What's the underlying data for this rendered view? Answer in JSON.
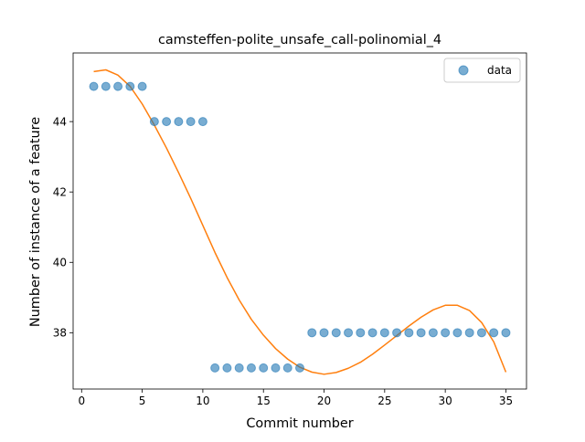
{
  "chart_data": {
    "type": "scatter",
    "title": "camsteffen-polite_unsafe_call-polinomial_4",
    "xlabel": "Commit number",
    "ylabel": "Number of instance of a feature",
    "xlim": [
      -0.7,
      36.7
    ],
    "ylim": [
      36.4,
      45.95
    ],
    "xticks": [
      0,
      5,
      10,
      15,
      20,
      25,
      30,
      35
    ],
    "yticks": [
      38,
      40,
      42,
      44
    ],
    "grid": false,
    "legend": {
      "placement": "top-right",
      "entries": [
        "data"
      ]
    },
    "series": [
      {
        "name": "data",
        "kind": "scatter",
        "color": "#1f77b4",
        "x": [
          1,
          2,
          3,
          4,
          5,
          6,
          7,
          8,
          9,
          10,
          11,
          12,
          13,
          14,
          15,
          16,
          17,
          18,
          19,
          20,
          21,
          22,
          23,
          24,
          25,
          26,
          27,
          28,
          29,
          30,
          31,
          32,
          33,
          34,
          35
        ],
        "y": [
          45,
          45,
          45,
          45,
          45,
          44,
          44,
          44,
          44,
          44,
          37,
          37,
          37,
          37,
          37,
          37,
          37,
          37,
          38,
          38,
          38,
          38,
          38,
          38,
          38,
          38,
          38,
          38,
          38,
          38,
          38,
          38,
          38,
          38,
          38
        ]
      },
      {
        "kind": "line",
        "color": "#ff7f0e",
        "x": [
          1,
          2,
          3,
          4,
          5,
          6,
          7,
          8,
          9,
          10,
          11,
          12,
          13,
          14,
          15,
          16,
          17,
          18,
          19,
          20,
          21,
          22,
          23,
          24,
          25,
          26,
          27,
          28,
          29,
          30,
          31,
          32,
          33,
          34,
          35
        ],
        "y": [
          45.42,
          45.47,
          45.32,
          45.0,
          44.5,
          43.9,
          43.25,
          42.55,
          41.82,
          41.05,
          40.28,
          39.57,
          38.93,
          38.38,
          37.93,
          37.55,
          37.25,
          37.02,
          36.88,
          36.82,
          36.87,
          36.99,
          37.16,
          37.39,
          37.65,
          37.92,
          38.19,
          38.44,
          38.65,
          38.78,
          38.78,
          38.63,
          38.29,
          37.74,
          36.88
        ]
      }
    ]
  }
}
